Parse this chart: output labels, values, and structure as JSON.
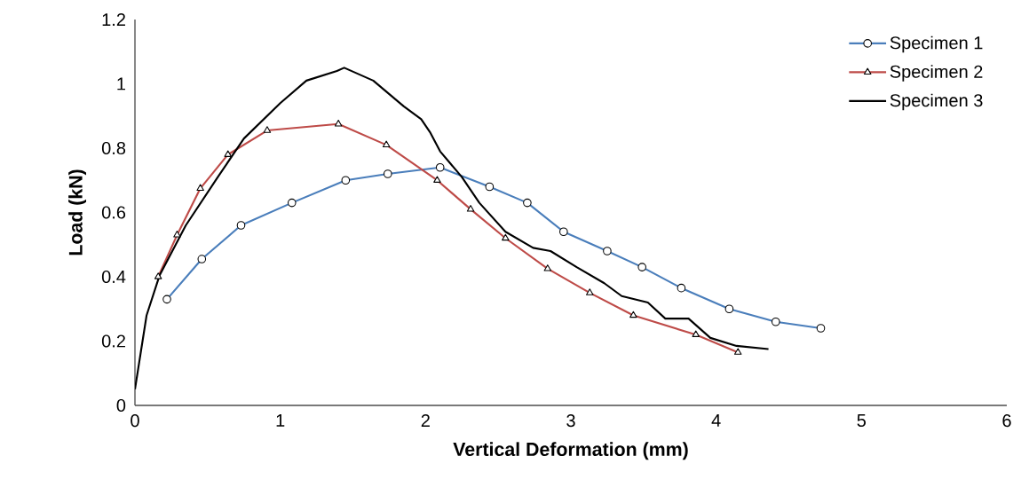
{
  "chart_data": {
    "type": "line",
    "xlabel": "Vertical Deformation (mm)",
    "ylabel": "Load (kN)",
    "xlim": [
      0,
      6
    ],
    "xticks": [
      0,
      1,
      2,
      3,
      4,
      5,
      6
    ],
    "ylim": [
      0,
      1.2
    ],
    "yticks": [
      0,
      0.2,
      0.4,
      0.6,
      0.8,
      1,
      1.2
    ],
    "grid": false,
    "legend": "top right",
    "line_style": "solid",
    "series": [
      {
        "name": "Specimen 1",
        "color": "#4a7ebb",
        "marker": "circle",
        "x": [
          0.22,
          0.46,
          0.73,
          1.08,
          1.45,
          1.74,
          2.1,
          2.44,
          2.7,
          2.95,
          3.25,
          3.49,
          3.76,
          4.09,
          4.41,
          4.72
        ],
        "values": [
          0.33,
          0.455,
          0.56,
          0.63,
          0.7,
          0.72,
          0.74,
          0.68,
          0.63,
          0.54,
          0.48,
          0.43,
          0.365,
          0.3,
          0.26,
          0.24
        ]
      },
      {
        "name": "Specimen 2",
        "color": "#be4b48",
        "marker": "triangle",
        "x": [
          0.16,
          0.29,
          0.45,
          0.64,
          0.91,
          1.4,
          1.73,
          2.08,
          2.31,
          2.55,
          2.84,
          3.13,
          3.43,
          3.86,
          4.15
        ],
        "values": [
          0.4,
          0.53,
          0.675,
          0.78,
          0.855,
          0.875,
          0.81,
          0.7,
          0.61,
          0.52,
          0.425,
          0.35,
          0.28,
          0.22,
          0.165
        ]
      },
      {
        "name": "Specimen 3",
        "color": "#000000",
        "marker": "none",
        "x": [
          0,
          0.08,
          0.17,
          0.35,
          0.57,
          0.75,
          1.0,
          1.18,
          1.39,
          1.44,
          1.64,
          1.85,
          1.97,
          2.03,
          2.1,
          2.25,
          2.37,
          2.55,
          2.74,
          2.86,
          3.04,
          3.23,
          3.35,
          3.53,
          3.65,
          3.81,
          3.96,
          4.14,
          4.36
        ],
        "values": [
          0.05,
          0.28,
          0.405,
          0.56,
          0.71,
          0.83,
          0.94,
          1.01,
          1.04,
          1.05,
          1.01,
          0.93,
          0.89,
          0.85,
          0.79,
          0.71,
          0.63,
          0.54,
          0.49,
          0.48,
          0.43,
          0.38,
          0.34,
          0.32,
          0.27,
          0.27,
          0.21,
          0.185,
          0.175
        ]
      }
    ]
  }
}
